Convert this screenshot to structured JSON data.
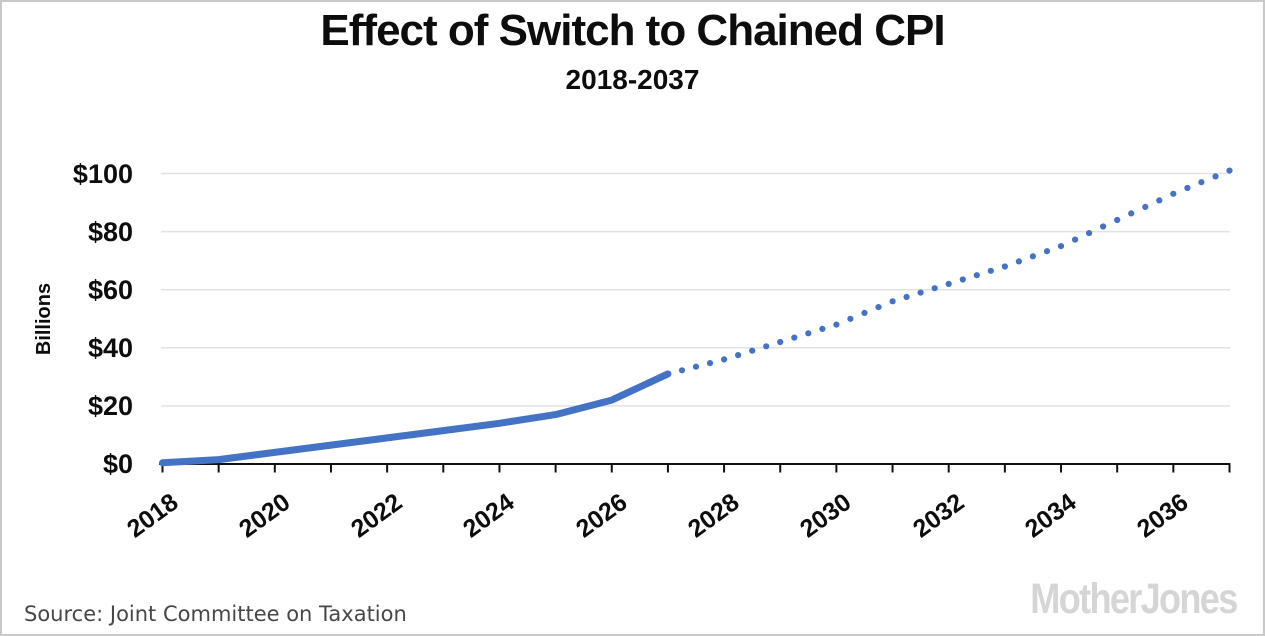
{
  "chart_data": {
    "type": "line",
    "title": "Effect of Switch to Chained CPI",
    "subtitle": "2018-2037",
    "ylabel": "Billions",
    "xlim": [
      2018,
      2037
    ],
    "ylim": [
      0,
      100
    ],
    "grid": "horizontal",
    "legend": "none",
    "line_color": "#4472c4",
    "y_ticks": [
      {
        "value": 0,
        "label": "$0"
      },
      {
        "value": 20,
        "label": "$20"
      },
      {
        "value": 40,
        "label": "$40"
      },
      {
        "value": 60,
        "label": "$60"
      },
      {
        "value": 80,
        "label": "$80"
      },
      {
        "value": 100,
        "label": "$100"
      }
    ],
    "x_ticks": [
      2018,
      2019,
      2020,
      2021,
      2022,
      2023,
      2024,
      2025,
      2026,
      2027,
      2028,
      2029,
      2030,
      2031,
      2032,
      2033,
      2034,
      2035,
      2036,
      2037
    ],
    "x_labels": [
      {
        "year": 2018,
        "label": "2018"
      },
      {
        "year": 2020,
        "label": "2020"
      },
      {
        "year": 2022,
        "label": "2022"
      },
      {
        "year": 2024,
        "label": "2024"
      },
      {
        "year": 2026,
        "label": "2026"
      },
      {
        "year": 2028,
        "label": "2028"
      },
      {
        "year": 2030,
        "label": "2030"
      },
      {
        "year": 2032,
        "label": "2032"
      },
      {
        "year": 2034,
        "label": "2034"
      },
      {
        "year": 2036,
        "label": "2036"
      }
    ],
    "series": [
      {
        "name": "solid",
        "style": "solid",
        "x": [
          2018,
          2019,
          2020,
          2021,
          2022,
          2023,
          2024,
          2025,
          2026,
          2027
        ],
        "values": [
          0.4,
          1.5,
          4,
          6.5,
          9,
          11.5,
          14,
          17,
          22,
          31
        ]
      },
      {
        "name": "dotted",
        "style": "dotted",
        "x": [
          2027,
          2028,
          2029,
          2030,
          2031,
          2032,
          2033,
          2034,
          2035,
          2036,
          2037
        ],
        "values": [
          31,
          36,
          42,
          48,
          56,
          62,
          68,
          75,
          84,
          93,
          101
        ]
      }
    ]
  },
  "footer": {
    "source": "Source: Joint Committee on Taxation",
    "logo": "MotherJones"
  }
}
